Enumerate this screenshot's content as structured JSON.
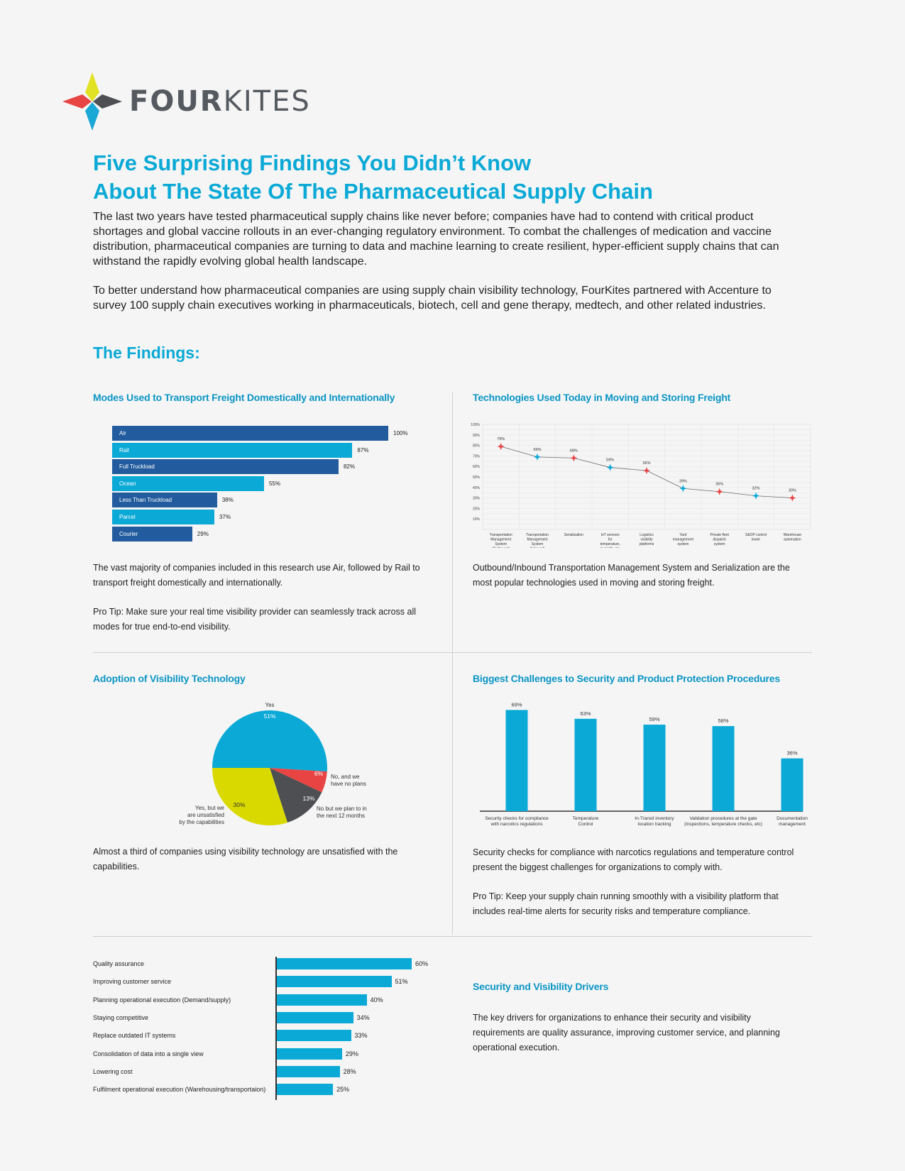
{
  "brand": {
    "name_bold": "FOUR",
    "name_light": "KITES",
    "colors": {
      "accent": "#0aa9d6",
      "dark_bar": "#235c9e",
      "light_bar": "#0aa9d6",
      "yellow": "#d9d900",
      "red": "#e84444",
      "gray": "#4d4f52"
    }
  },
  "title": {
    "line1": "Five Surprising Findings You Didn’t Know",
    "line2": "About The State Of The Pharmaceutical Supply Chain"
  },
  "intro": {
    "p1": "The last two years have tested pharmaceutical supply chains like never before; companies have had to contend with critical product shortages and global vaccine rollouts in an ever-changing regulatory environment. To combat the challenges of medication and vaccine distribution, pharmaceutical companies are turning to data and machine learning to create resilient, hyper-efficient supply chains that can withstand the rapidly evolving global health landscape.",
    "p2": "To better understand how pharmaceutical companies are using supply chain visibility technology, FourKites partnered with Accenture to survey 100 supply chain executives working in pharmaceuticals, biotech, cell and gene therapy, medtech, and other related industries."
  },
  "findings_heading": "The Findings:",
  "sections": {
    "modes": {
      "title": "Modes Used to Transport Freight Domestically and Internationally",
      "text1": "The vast majority of companies included in this research use Air, followed by Rail to transport freight domestically and internationally.",
      "text2": "Pro Tip: Make sure your real time visibility provider can seamlessly track across all modes for true end-to-end visibility."
    },
    "tech": {
      "title": "Technologies Used Today in Moving and Storing Freight",
      "text1": "Outbound/Inbound Transportation Management System and Serialization are the most popular technologies used in moving and storing freight."
    },
    "adoption": {
      "title": "Adoption of Visibility Technology",
      "text1": "Almost a third of companies using visibility technology are unsatisfied with the capabilities."
    },
    "challenges": {
      "title": "Biggest Challenges to Security and Product Protection Procedures",
      "text1": "Security checks for compliance with narcotics regulations and temperature control present the biggest challenges for organizations to comply with.",
      "text2": "Pro Tip: Keep your supply chain running smoothly with a visibility platform that includes real-time alerts for security risks and temperature compliance."
    },
    "drivers": {
      "title": "Security and Visibility Drivers",
      "text1": "The key drivers for organizations to enhance their security and visibility requirements are quality assurance, improving customer service, and planning operational execution."
    }
  },
  "chart_data": [
    {
      "type": "bar",
      "orientation": "horizontal",
      "categories": [
        "Air",
        "Rail",
        "Full Truckload",
        "Ocean",
        "Less Than Truckload",
        "Parcel",
        "Courier"
      ],
      "values": [
        100,
        87,
        82,
        55,
        38,
        37,
        29
      ],
      "value_labels": [
        "100%",
        "87%",
        "82%",
        "55%",
        "38%",
        "37%",
        "29%"
      ],
      "bar_colors": [
        "#235c9e",
        "#0aa9d6",
        "#235c9e",
        "#0aa9d6",
        "#235c9e",
        "#0aa9d6",
        "#235c9e"
      ],
      "xlim": [
        0,
        100
      ]
    },
    {
      "type": "line",
      "categories": [
        "Transportation Management System (Outbound)",
        "Transportation Management System (Inbound)",
        "Serialization",
        "IoT sensors for temperature, humidity etc",
        "Logistics visibility platforms",
        "Yard management system",
        "Private fleet dispatch system",
        "S&OP control tower",
        "Warehouse automation"
      ],
      "values": [
        79,
        69,
        68,
        59,
        56,
        39,
        36,
        32,
        30
      ],
      "value_labels": [
        "79%",
        "69%",
        "68%",
        "59%",
        "56%",
        "39%",
        "36%",
        "32%",
        "30%"
      ],
      "marker_colors": [
        "#e84444",
        "#0aa9d6",
        "#e84444",
        "#0aa9d6",
        "#e84444",
        "#0aa9d6",
        "#e84444",
        "#0aa9d6",
        "#e84444"
      ],
      "yticks": [
        "10%",
        "20%",
        "30%",
        "40%",
        "50%",
        "60%",
        "70%",
        "80%",
        "90%",
        "100%"
      ],
      "ylim": [
        0,
        100
      ],
      "grid": true
    },
    {
      "type": "pie",
      "labels": [
        "Yes",
        "No, and we have no plans",
        "No but we plan to in the next 12 months",
        "Yes, but we are unsatisfied by the capabilities"
      ],
      "values": [
        51,
        6,
        13,
        30
      ],
      "value_labels": [
        "51%",
        "6%",
        "13%",
        "30%"
      ],
      "colors": [
        "#0aa9d6",
        "#e84444",
        "#4d4f52",
        "#d9d900"
      ]
    },
    {
      "type": "bar",
      "orientation": "vertical",
      "categories": [
        "Security checks for compliance with narcotics regulations",
        "Temperature Control",
        "In-Transit inventory location tracking",
        "Validation procedures at the gate (inspections, temperature checks, etc)",
        "Documentation management"
      ],
      "values": [
        69,
        63,
        59,
        58,
        36
      ],
      "value_labels": [
        "69%",
        "63%",
        "59%",
        "58%",
        "36%"
      ],
      "ylim": [
        0,
        75
      ]
    },
    {
      "type": "bar",
      "orientation": "horizontal",
      "categories": [
        "Quality assurance",
        "Improving customer service",
        "Planning operational execution (Demand/supply)",
        "Staying competitive",
        "Replace outdated IT systems",
        "Consolidation of data into a single view",
        "Lowering cost",
        "Fulfilment operational execution (Warehousing/transportaion)"
      ],
      "values": [
        60,
        51,
        40,
        34,
        33,
        29,
        28,
        25
      ],
      "value_labels": [
        "60%",
        "51%",
        "40%",
        "34%",
        "33%",
        "29%",
        "28%",
        "25%"
      ],
      "xlim": [
        0,
        60
      ]
    }
  ]
}
